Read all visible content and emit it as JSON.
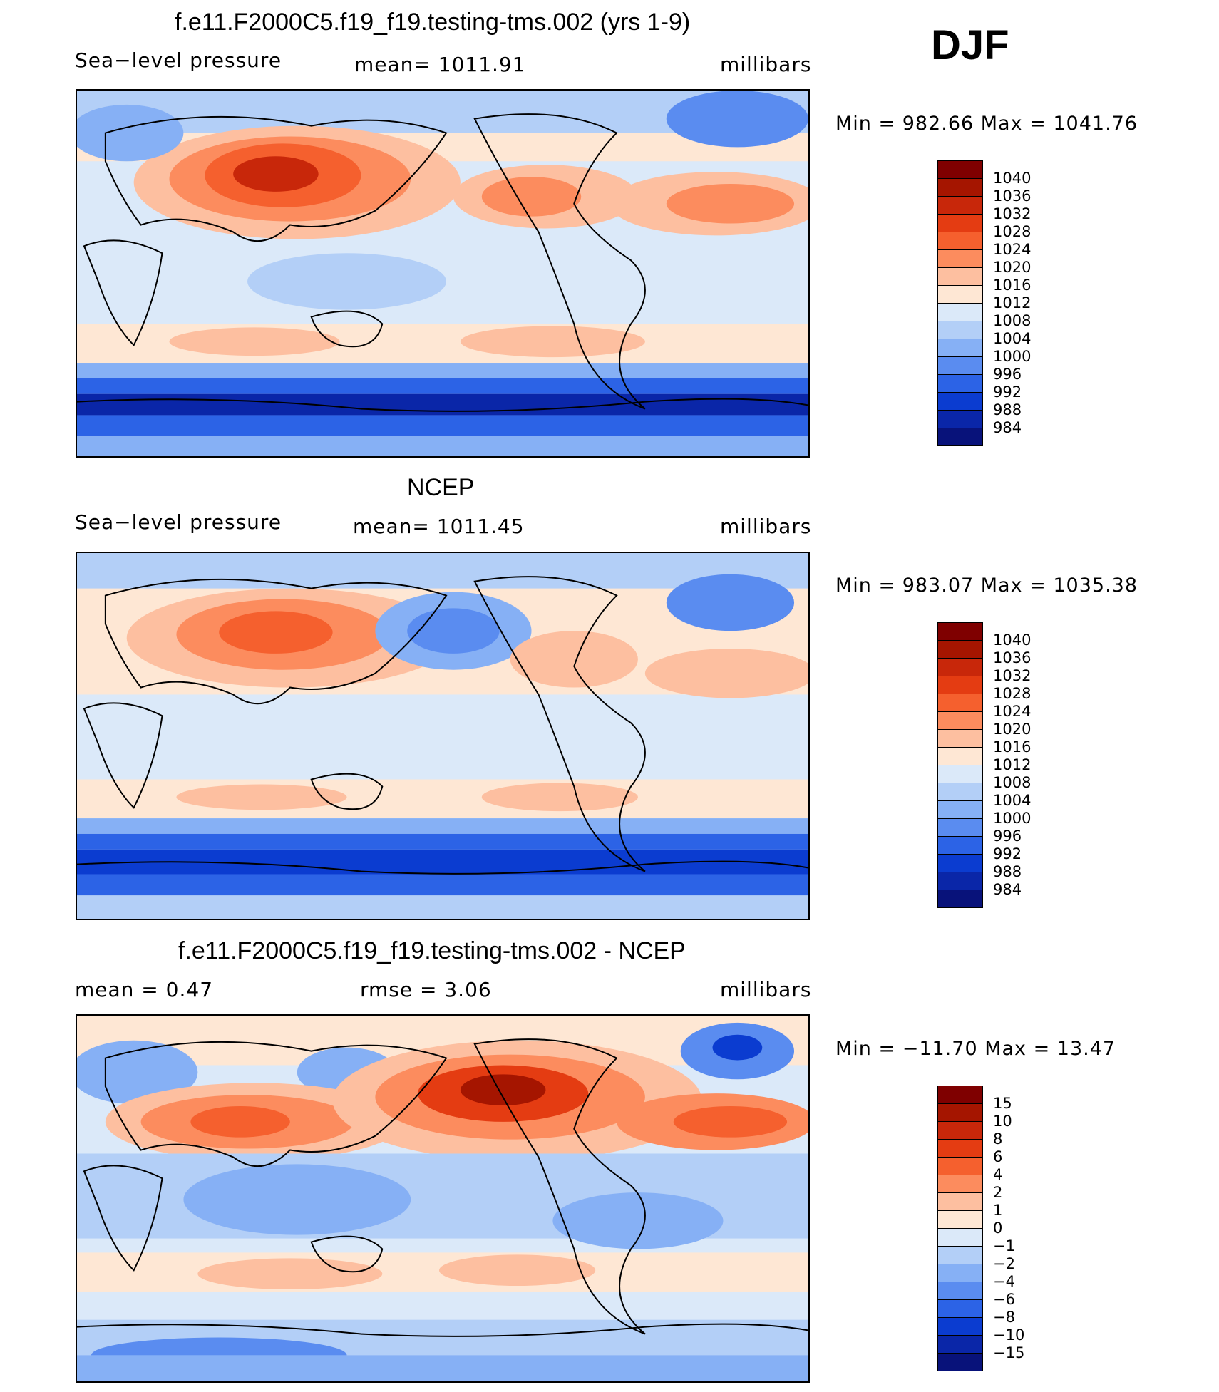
{
  "season": "DJF",
  "panels": [
    {
      "title": "f.e11.F2000C5.f19_f19.testing-tms.002 (yrs 1-9)",
      "left_label": "Sea−level pressure",
      "center_label": "mean=  1011.91",
      "units": "millibars",
      "minmax": "Min  =  982.66  Max  =  1041.76",
      "colorbar": {
        "labels": [
          "1040",
          "1036",
          "1032",
          "1028",
          "1024",
          "1020",
          "1016",
          "1012",
          "1008",
          "1004",
          "1000",
          "996",
          "992",
          "988",
          "984"
        ],
        "colors": [
          "#7f0000",
          "#a51500",
          "#c8270a",
          "#e43c12",
          "#f5602e",
          "#fc8c5e",
          "#fdbfa0",
          "#fee7d4",
          "#dbe9f9",
          "#b3cff7",
          "#86b0f5",
          "#5a8cf0",
          "#2c63e6",
          "#0b3cd0",
          "#0a26a8",
          "#08127a"
        ]
      }
    },
    {
      "title": "NCEP",
      "left_label": "Sea−level pressure",
      "center_label": "mean=  1011.45",
      "units": "millibars",
      "minmax": "Min  =  983.07  Max  =  1035.38",
      "colorbar": {
        "labels": [
          "1040",
          "1036",
          "1032",
          "1028",
          "1024",
          "1020",
          "1016",
          "1012",
          "1008",
          "1004",
          "1000",
          "996",
          "992",
          "988",
          "984"
        ],
        "colors": [
          "#7f0000",
          "#a51500",
          "#c8270a",
          "#e43c12",
          "#f5602e",
          "#fc8c5e",
          "#fdbfa0",
          "#fee7d4",
          "#dbe9f9",
          "#b3cff7",
          "#86b0f5",
          "#5a8cf0",
          "#2c63e6",
          "#0b3cd0",
          "#0a26a8",
          "#08127a"
        ]
      }
    },
    {
      "title": "f.e11.F2000C5.f19_f19.testing-tms.002 - NCEP",
      "left_label": "mean  =     0.47",
      "center_label": "rmse  =     3.06",
      "units": "millibars",
      "minmax": "Min  =  −11.70  Max  =    13.47",
      "colorbar": {
        "labels": [
          "15",
          "10",
          "8",
          "6",
          "4",
          "2",
          "1",
          "0",
          "−1",
          "−2",
          "−4",
          "−6",
          "−8",
          "−10",
          "−15"
        ],
        "colors": [
          "#7f0000",
          "#a51500",
          "#c8270a",
          "#e43c12",
          "#f5602e",
          "#fc8c5e",
          "#fdbfa0",
          "#fee7d4",
          "#dbe9f9",
          "#b3cff7",
          "#86b0f5",
          "#5a8cf0",
          "#2c63e6",
          "#0b3cd0",
          "#0a26a8",
          "#08127a"
        ]
      }
    }
  ]
}
